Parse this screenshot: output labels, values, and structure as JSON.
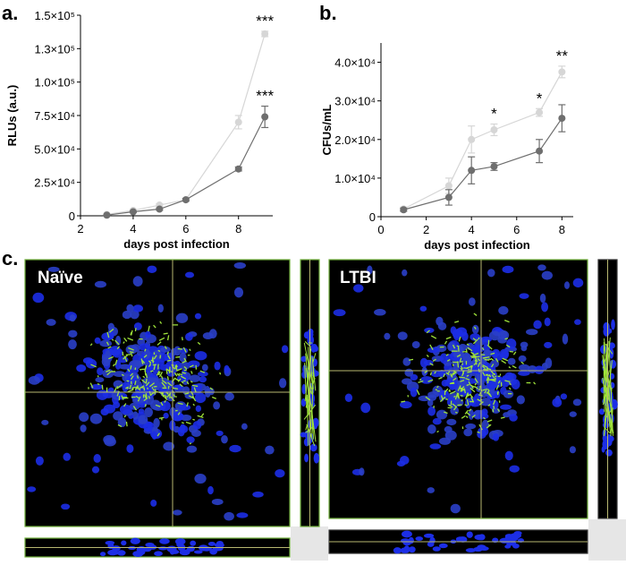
{
  "chart_data": [
    {
      "type": "line",
      "panel_label": "a.",
      "x_label": "days post infection",
      "y_label": "RLUs (a.u.)",
      "xlim": [
        2,
        9.3
      ],
      "xticks": [
        2,
        4,
        6,
        8
      ],
      "ylim": [
        0,
        150000
      ],
      "yticks": [
        0,
        {
          "value": 25000,
          "label": "2.5×10⁴"
        },
        {
          "value": 50000,
          "label": "5.0×10⁴"
        },
        {
          "value": 75000,
          "label": "7.5×10⁴"
        },
        {
          "value": 100000,
          "label": "1.0×10⁵"
        },
        {
          "value": 125000,
          "label": "1.3×10⁵"
        },
        {
          "value": 150000,
          "label": "1.5×10⁵"
        }
      ],
      "series": [
        {
          "color": "#d6d6d6",
          "x": [
            3,
            4,
            5,
            6,
            8,
            9
          ],
          "values": [
            1000,
            4000,
            8000,
            12000,
            70000,
            136000
          ],
          "errors": [
            500,
            800,
            1000,
            1000,
            5000,
            2000
          ],
          "annotations": [
            null,
            null,
            null,
            null,
            null,
            "***"
          ]
        },
        {
          "color": "#6e6e6e",
          "x": [
            3,
            4,
            5,
            6,
            8,
            9
          ],
          "values": [
            500,
            3000,
            5000,
            12000,
            35000,
            74000
          ],
          "errors": [
            300,
            500,
            800,
            1000,
            1500,
            8000
          ],
          "annotations": [
            null,
            null,
            null,
            null,
            null,
            "***"
          ]
        }
      ]
    },
    {
      "type": "line",
      "panel_label": "b.",
      "x_label": "days post infection",
      "y_label": "CFUs/mL",
      "xlim": [
        0,
        8.5
      ],
      "xticks": [
        0,
        2,
        4,
        6,
        8
      ],
      "ylim": [
        0,
        45000
      ],
      "yticks": [
        0,
        {
          "value": 10000,
          "label": "1.0×10⁴"
        },
        {
          "value": 20000,
          "label": "2.0×10⁴"
        },
        {
          "value": 30000,
          "label": "3.0×10⁴"
        },
        {
          "value": 40000,
          "label": "4.0×10⁴"
        }
      ],
      "series": [
        {
          "color": "#d6d6d6",
          "x": [
            1,
            3,
            4,
            5,
            7,
            8
          ],
          "values": [
            2000,
            8000,
            20000,
            22500,
            27000,
            37500
          ],
          "errors": [
            500,
            2000,
            3500,
            1500,
            1000,
            1500
          ],
          "annotations": [
            null,
            null,
            null,
            "*",
            "*",
            "**"
          ]
        },
        {
          "color": "#6e6e6e",
          "x": [
            1,
            3,
            4,
            5,
            7,
            8
          ],
          "values": [
            1800,
            5000,
            12000,
            13000,
            17000,
            25500
          ],
          "errors": [
            400,
            2000,
            3500,
            1000,
            3000,
            3500
          ],
          "annotations": [
            null,
            null,
            null,
            null,
            null,
            null
          ]
        }
      ]
    }
  ],
  "images": {
    "panel_label": "c.",
    "panels": [
      {
        "label": "Naïve"
      },
      {
        "label": "LTBI"
      }
    ]
  }
}
